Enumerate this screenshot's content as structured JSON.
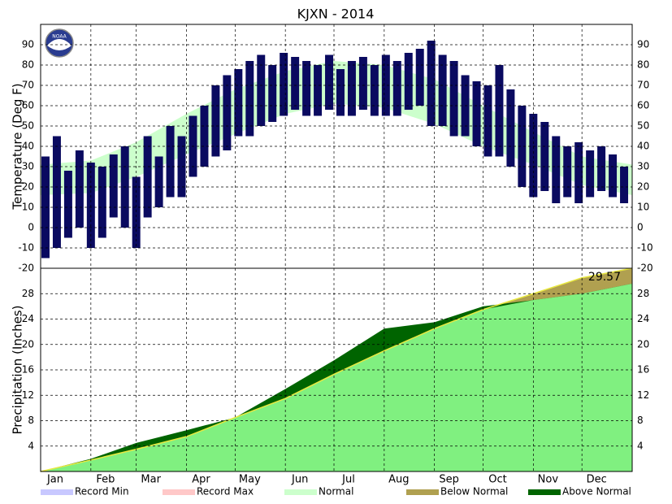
{
  "chart_data": [
    {
      "type": "range_bar",
      "title": "KJXN - 2014",
      "y_label": "Temperature (Deg F)",
      "xlim": [
        0,
        365
      ],
      "xticks": [
        0,
        31,
        59,
        90,
        120,
        151,
        181,
        212,
        243,
        273,
        304,
        334
      ],
      "ylim": [
        -20,
        100
      ],
      "yticks": [
        -20,
        -10,
        0,
        10,
        20,
        30,
        40,
        50,
        60,
        70,
        80,
        90
      ],
      "grid": true,
      "x": [
        3,
        10,
        17,
        24,
        31,
        38,
        45,
        52,
        59,
        66,
        73,
        80,
        87,
        94,
        101,
        108,
        115,
        122,
        129,
        136,
        143,
        150,
        157,
        164,
        171,
        178,
        185,
        192,
        199,
        206,
        213,
        220,
        227,
        234,
        241,
        248,
        255,
        262,
        269,
        276,
        283,
        290,
        297,
        304,
        311,
        318,
        325,
        332,
        339,
        346,
        353,
        360
      ],
      "series": [
        {
          "name": "High",
          "color": "#0a0a60",
          "values": [
            35,
            45,
            28,
            38,
            32,
            30,
            36,
            40,
            25,
            45,
            35,
            50,
            45,
            55,
            60,
            70,
            75,
            78,
            82,
            85,
            80,
            86,
            84,
            82,
            80,
            85,
            78,
            82,
            84,
            80,
            85,
            82,
            86,
            88,
            92,
            85,
            82,
            75,
            72,
            70,
            80,
            68,
            60,
            56,
            52,
            45,
            40,
            42,
            38,
            40,
            36,
            30
          ]
        },
        {
          "name": "Low",
          "color": "#0a0a60",
          "values": [
            -15,
            -10,
            -5,
            0,
            -10,
            -5,
            5,
            0,
            -10,
            5,
            10,
            15,
            15,
            25,
            30,
            35,
            38,
            45,
            45,
            50,
            52,
            55,
            58,
            55,
            55,
            58,
            55,
            55,
            58,
            55,
            55,
            55,
            58,
            60,
            50,
            50,
            45,
            45,
            40,
            35,
            35,
            30,
            20,
            15,
            18,
            12,
            15,
            12,
            15,
            18,
            15,
            12
          ]
        }
      ],
      "normal": {
        "color": "#ccffcc",
        "x": [
          0,
          31,
          59,
          90,
          120,
          151,
          181,
          212,
          243,
          273,
          304,
          334,
          365
        ],
        "high": [
          31,
          33,
          42,
          56,
          68,
          77,
          82,
          80,
          73,
          60,
          47,
          35,
          31
        ],
        "low": [
          16,
          17,
          25,
          36,
          46,
          56,
          61,
          59,
          51,
          40,
          31,
          21,
          16
        ]
      }
    },
    {
      "type": "area",
      "y_label": "Precipitation (Inches)",
      "xlim": [
        0,
        365
      ],
      "xticks": [
        {
          "value": 0,
          "label": "Jan"
        },
        {
          "value": 31,
          "label": "Feb"
        },
        {
          "value": 59,
          "label": "Mar"
        },
        {
          "value": 90,
          "label": "Apr"
        },
        {
          "value": 120,
          "label": "May"
        },
        {
          "value": 151,
          "label": "Jun"
        },
        {
          "value": 181,
          "label": "Jul"
        },
        {
          "value": 212,
          "label": "Aug"
        },
        {
          "value": 243,
          "label": "Sep"
        },
        {
          "value": 273,
          "label": "Oct"
        },
        {
          "value": 304,
          "label": "Nov"
        },
        {
          "value": 334,
          "label": "Dec"
        }
      ],
      "ylim": [
        0,
        32
      ],
      "yticks": [
        4,
        8,
        12,
        16,
        20,
        24,
        28
      ],
      "grid": true,
      "x": [
        0,
        31,
        59,
        90,
        120,
        151,
        181,
        212,
        243,
        273,
        304,
        334,
        365
      ],
      "series": [
        {
          "name": "Actual",
          "color": "#80f080",
          "values": [
            0,
            2,
            4.5,
            6.5,
            8.5,
            13,
            17.5,
            22.5,
            23.5,
            26,
            27,
            28,
            29.57
          ]
        },
        {
          "name": "Normal",
          "color": "#e8e840",
          "values": [
            0,
            1.8,
            3.5,
            5.5,
            8.5,
            11.5,
            15.3,
            19,
            22.5,
            25.5,
            28,
            30.5,
            32
          ]
        }
      ],
      "above_color": "#006400",
      "below_color": "#b0a050",
      "annotation": "29.57"
    }
  ],
  "legend": [
    {
      "name": "Record Min",
      "color": "#c8c8ff"
    },
    {
      "name": "Record Max",
      "color": "#ffc8c8"
    },
    {
      "name": "Normal",
      "color": "#ccffcc"
    },
    {
      "name": "Below Normal",
      "color": "#b0a050"
    },
    {
      "name": "Above Normal",
      "color": "#006400"
    }
  ]
}
